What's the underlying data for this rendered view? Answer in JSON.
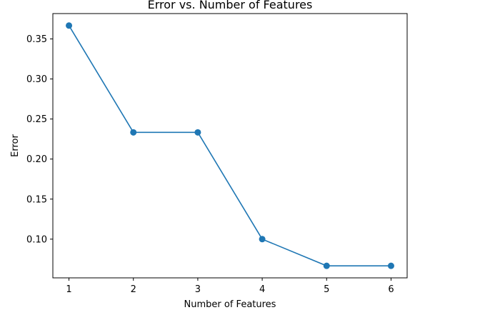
{
  "chart_data": {
    "type": "line",
    "title": "Error vs. Number of Features",
    "xlabel": "Number of Features",
    "ylabel": "Error",
    "x": [
      1,
      2,
      3,
      4,
      5,
      6
    ],
    "series": [
      {
        "values": [
          0.3667,
          0.2333,
          0.2333,
          0.1,
          0.0667,
          0.0667
        ],
        "color": "#1f77b4",
        "marker": "circle"
      }
    ],
    "xlim": [
      0.75,
      6.25
    ],
    "ylim": [
      0.05167,
      0.38167
    ],
    "xticks": [
      1,
      2,
      3,
      4,
      5,
      6
    ],
    "xtick_labels": [
      "1",
      "2",
      "3",
      "4",
      "5",
      "6"
    ],
    "yticks": [
      0.1,
      0.15,
      0.2,
      0.25,
      0.3,
      0.35
    ],
    "ytick_labels": [
      "0.10",
      "0.15",
      "0.20",
      "0.25",
      "0.30",
      "0.35"
    ],
    "grid": false,
    "legend": false
  }
}
